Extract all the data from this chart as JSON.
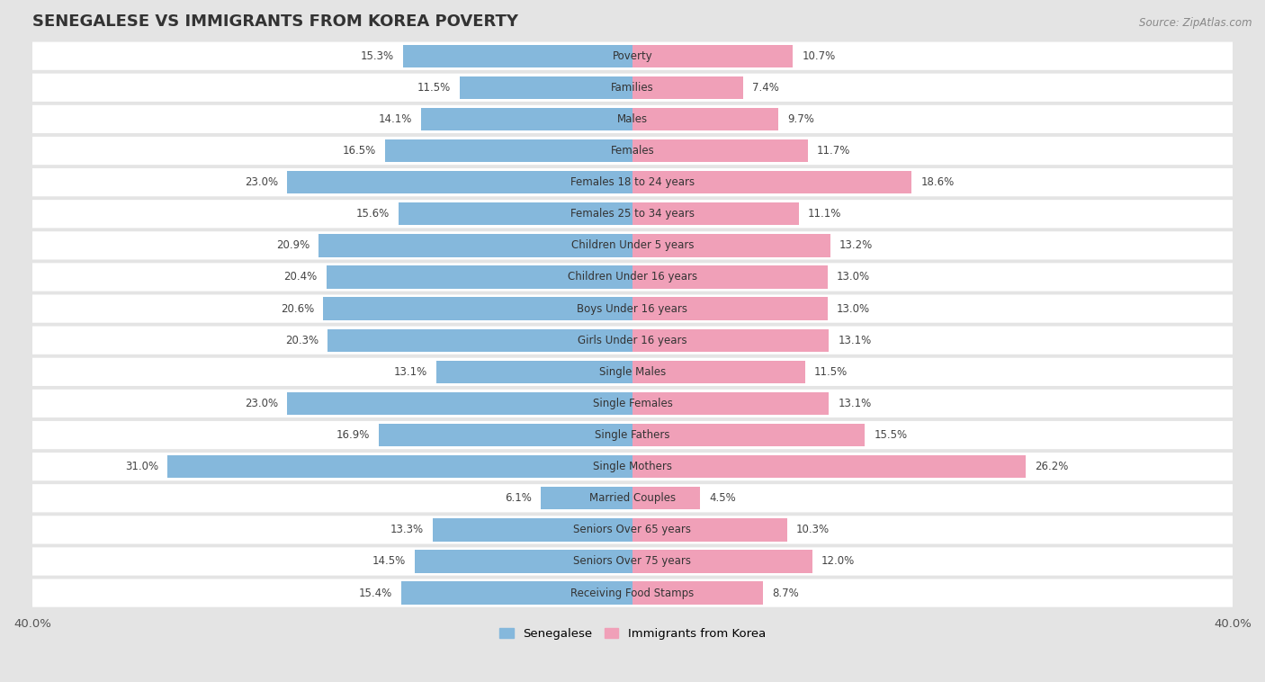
{
  "title": "SENEGALESE VS IMMIGRANTS FROM KOREA POVERTY",
  "source": "Source: ZipAtlas.com",
  "categories": [
    "Poverty",
    "Families",
    "Males",
    "Females",
    "Females 18 to 24 years",
    "Females 25 to 34 years",
    "Children Under 5 years",
    "Children Under 16 years",
    "Boys Under 16 years",
    "Girls Under 16 years",
    "Single Males",
    "Single Females",
    "Single Fathers",
    "Single Mothers",
    "Married Couples",
    "Seniors Over 65 years",
    "Seniors Over 75 years",
    "Receiving Food Stamps"
  ],
  "senegalese": [
    15.3,
    11.5,
    14.1,
    16.5,
    23.0,
    15.6,
    20.9,
    20.4,
    20.6,
    20.3,
    13.1,
    23.0,
    16.9,
    31.0,
    6.1,
    13.3,
    14.5,
    15.4
  ],
  "korea": [
    10.7,
    7.4,
    9.7,
    11.7,
    18.6,
    11.1,
    13.2,
    13.0,
    13.0,
    13.1,
    11.5,
    13.1,
    15.5,
    26.2,
    4.5,
    10.3,
    12.0,
    8.7
  ],
  "senegalese_color": "#85b8dc",
  "korea_color": "#f0a0b8",
  "outer_bg": "#e4e4e4",
  "row_bg": "#ffffff",
  "xlim": 40.0,
  "legend_labels": [
    "Senegalese",
    "Immigrants from Korea"
  ]
}
